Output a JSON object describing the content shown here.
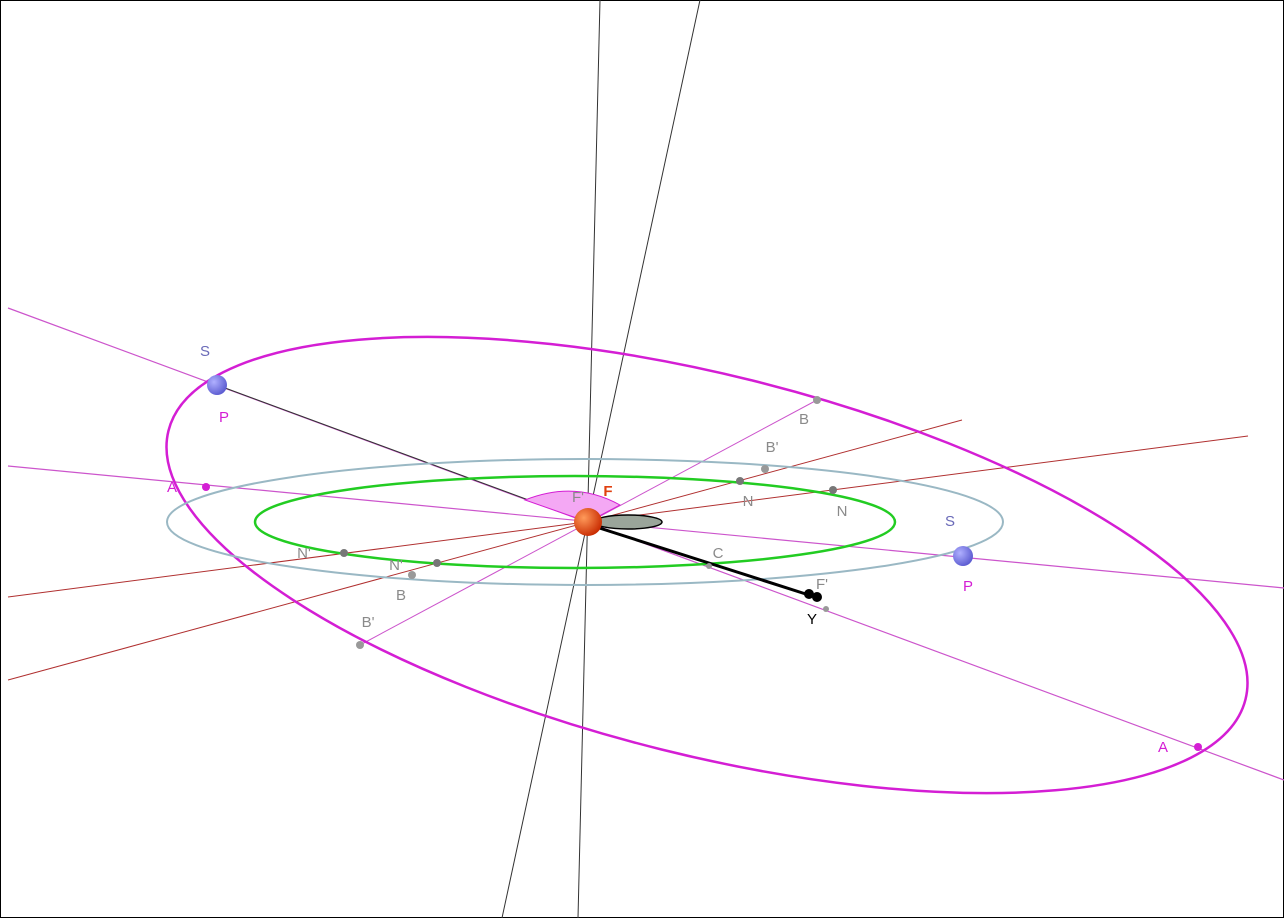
{
  "labels": [
    "S",
    "P",
    "A",
    "B",
    "B'",
    "N",
    "N",
    "F'",
    "F",
    "S",
    "P",
    "N'",
    "N'",
    "B",
    "C",
    "F'",
    "Y",
    "B'",
    "A"
  ]
}
